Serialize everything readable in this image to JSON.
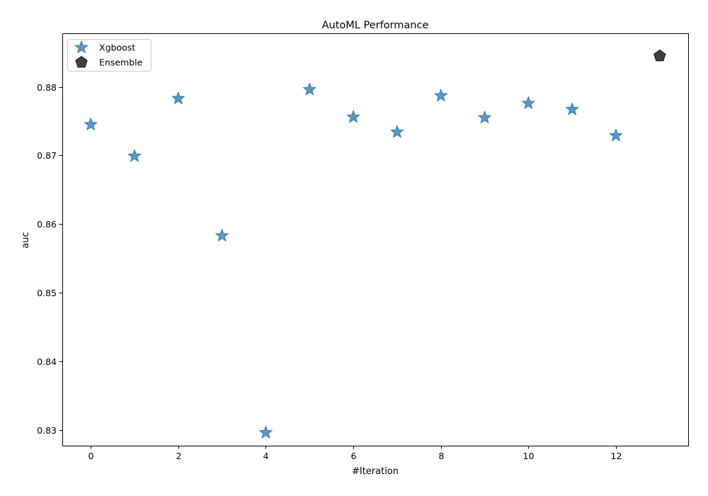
{
  "chart_data": {
    "type": "scatter",
    "title": "AutoML Performance",
    "xlabel": "#Iteration",
    "ylabel": "auc",
    "xlim": [
      -0.65,
      13.65
    ],
    "ylim": [
      0.8277,
      0.8878
    ],
    "xticks": [
      0,
      2,
      4,
      6,
      8,
      10,
      12
    ],
    "yticks": [
      0.83,
      0.84,
      0.85,
      0.86,
      0.87,
      0.88
    ],
    "grid": false,
    "legend_position": "top-left",
    "series": [
      {
        "name": "Xgboost",
        "marker": "star",
        "color": "#1f77b4",
        "points": [
          {
            "x": 0,
            "y": 0.8745
          },
          {
            "x": 1,
            "y": 0.8699
          },
          {
            "x": 2,
            "y": 0.8783
          },
          {
            "x": 3,
            "y": 0.8583
          },
          {
            "x": 4,
            "y": 0.8296
          },
          {
            "x": 5,
            "y": 0.8796
          },
          {
            "x": 6,
            "y": 0.8756
          },
          {
            "x": 7,
            "y": 0.8734
          },
          {
            "x": 8,
            "y": 0.8787
          },
          {
            "x": 9,
            "y": 0.8755
          },
          {
            "x": 10,
            "y": 0.8776
          },
          {
            "x": 11,
            "y": 0.8767
          },
          {
            "x": 12,
            "y": 0.8729
          }
        ]
      },
      {
        "name": "Ensemble",
        "marker": "pentagon",
        "color": "#000000",
        "points": [
          {
            "x": 13,
            "y": 0.8845
          }
        ]
      }
    ]
  }
}
